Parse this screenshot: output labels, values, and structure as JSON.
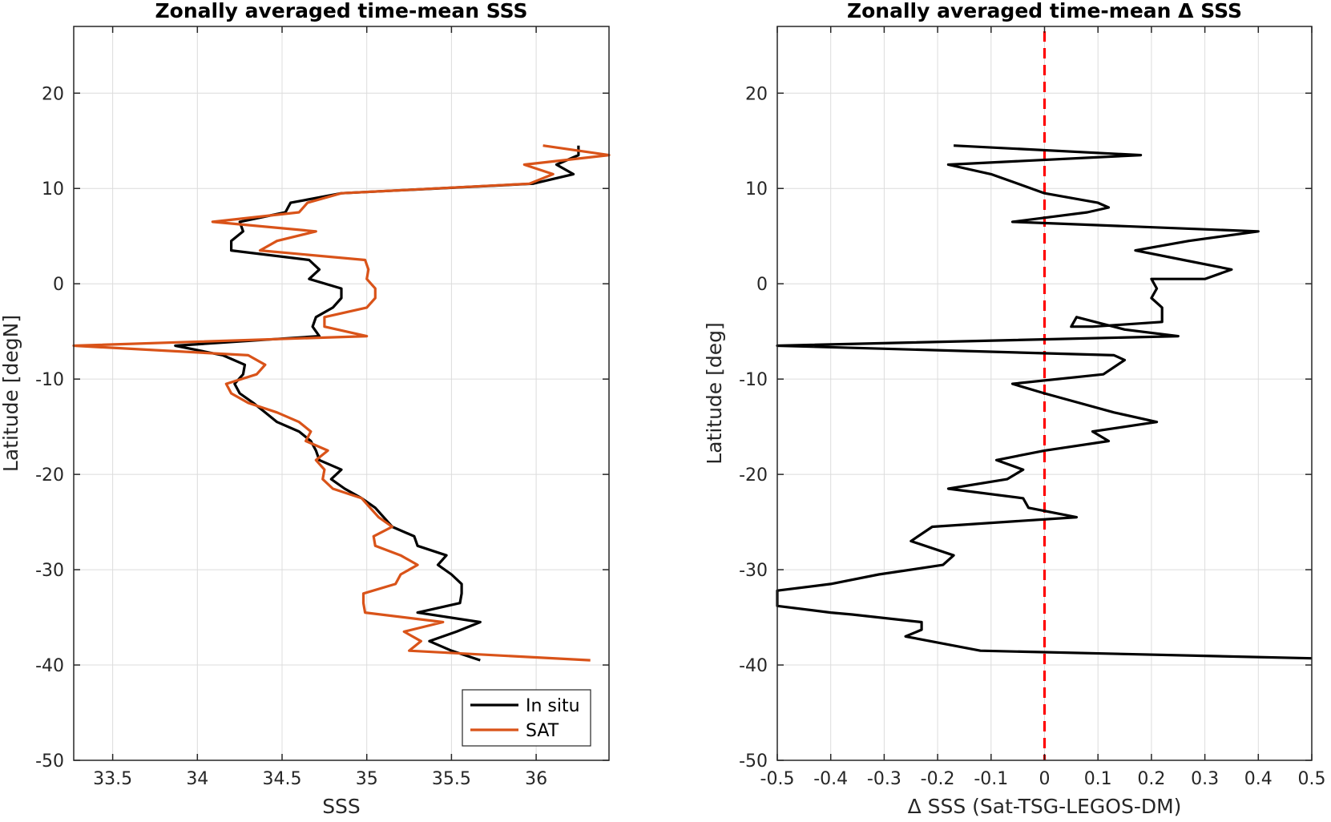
{
  "chart_data": [
    {
      "type": "line",
      "title": "Zonally averaged time-mean SSS",
      "xlabel": "SSS",
      "ylabel": "Latitude [degN]",
      "xlim": [
        33.27,
        36.43
      ],
      "ylim": [
        -50,
        27
      ],
      "xticks": [
        33.5,
        34,
        34.5,
        35,
        35.5,
        36
      ],
      "xtick_labels": [
        "33.5",
        "34",
        "34.5",
        "35",
        "35.5",
        "36"
      ],
      "yticks": [
        -50,
        -40,
        -30,
        -20,
        -10,
        0,
        10,
        20
      ],
      "ytick_labels": [
        "-50",
        "-40",
        "-30",
        "-20",
        "-10",
        "0",
        "10",
        "20"
      ],
      "grid": true,
      "legend": "bottom-right",
      "series": [
        {
          "name": "In situ",
          "color": "#000000",
          "points": [
            [
              36.25,
              14.5
            ],
            [
              36.25,
              13.5
            ],
            [
              36.12,
              12.5
            ],
            [
              36.22,
              11.5
            ],
            [
              35.98,
              10.5
            ],
            [
              34.85,
              9.5
            ],
            [
              34.55,
              8.5
            ],
            [
              34.52,
              7.5
            ],
            [
              34.25,
              6.5
            ],
            [
              34.27,
              5.5
            ],
            [
              34.2,
              4.5
            ],
            [
              34.2,
              3.5
            ],
            [
              34.66,
              2.5
            ],
            [
              34.72,
              1.5
            ],
            [
              34.66,
              0.5
            ],
            [
              34.85,
              -0.5
            ],
            [
              34.85,
              -1.5
            ],
            [
              34.8,
              -2.5
            ],
            [
              34.7,
              -3.5
            ],
            [
              34.68,
              -4.5
            ],
            [
              34.72,
              -5.5
            ],
            [
              33.87,
              -6.5
            ],
            [
              34.15,
              -7.5
            ],
            [
              34.28,
              -8.5
            ],
            [
              34.27,
              -9.5
            ],
            [
              34.22,
              -10.5
            ],
            [
              34.25,
              -11.5
            ],
            [
              34.33,
              -12.5
            ],
            [
              34.4,
              -13.5
            ],
            [
              34.47,
              -14.5
            ],
            [
              34.6,
              -15.5
            ],
            [
              34.67,
              -16.5
            ],
            [
              34.7,
              -17.5
            ],
            [
              34.72,
              -18.5
            ],
            [
              34.85,
              -19.5
            ],
            [
              34.79,
              -20.5
            ],
            [
              34.87,
              -21.5
            ],
            [
              34.97,
              -22.5
            ],
            [
              35.05,
              -23.5
            ],
            [
              35.1,
              -24.5
            ],
            [
              35.15,
              -25.5
            ],
            [
              35.28,
              -26.5
            ],
            [
              35.3,
              -27.5
            ],
            [
              35.47,
              -28.5
            ],
            [
              35.42,
              -29.5
            ],
            [
              35.5,
              -30.5
            ],
            [
              35.56,
              -31.5
            ],
            [
              35.56,
              -32.5
            ],
            [
              35.55,
              -33.5
            ],
            [
              35.3,
              -34.5
            ],
            [
              35.67,
              -35.5
            ],
            [
              35.53,
              -36.5
            ],
            [
              35.37,
              -37.5
            ],
            [
              35.5,
              -38.5
            ],
            [
              35.67,
              -39.5
            ]
          ]
        },
        {
          "name": "SAT",
          "color": "#D95319",
          "points": [
            [
              36.04,
              14.5
            ],
            [
              36.43,
              13.5
            ],
            [
              35.93,
              12.5
            ],
            [
              36.1,
              11.5
            ],
            [
              35.96,
              10.5
            ],
            [
              34.85,
              9.5
            ],
            [
              34.65,
              8.5
            ],
            [
              34.6,
              7.5
            ],
            [
              34.09,
              6.5
            ],
            [
              34.7,
              5.5
            ],
            [
              34.47,
              4.5
            ],
            [
              34.37,
              3.5
            ],
            [
              34.99,
              2.5
            ],
            [
              35.01,
              1.5
            ],
            [
              35.0,
              0.5
            ],
            [
              35.05,
              -0.5
            ],
            [
              35.05,
              -1.5
            ],
            [
              35.0,
              -2.5
            ],
            [
              34.75,
              -3.5
            ],
            [
              34.75,
              -4.5
            ],
            [
              35.0,
              -5.5
            ],
            [
              33.27,
              -6.5
            ],
            [
              34.3,
              -7.5
            ],
            [
              34.4,
              -8.5
            ],
            [
              34.35,
              -9.5
            ],
            [
              34.17,
              -10.5
            ],
            [
              34.2,
              -11.5
            ],
            [
              34.3,
              -12.5
            ],
            [
              34.47,
              -13.5
            ],
            [
              34.6,
              -14.5
            ],
            [
              34.67,
              -15.5
            ],
            [
              34.64,
              -16.5
            ],
            [
              34.77,
              -17.5
            ],
            [
              34.7,
              -18.5
            ],
            [
              34.75,
              -19.5
            ],
            [
              34.74,
              -20.5
            ],
            [
              34.8,
              -21.5
            ],
            [
              34.97,
              -22.5
            ],
            [
              35.02,
              -23.5
            ],
            [
              35.07,
              -24.5
            ],
            [
              35.15,
              -25.5
            ],
            [
              35.04,
              -26.5
            ],
            [
              35.05,
              -27.5
            ],
            [
              35.2,
              -28.5
            ],
            [
              35.3,
              -29.5
            ],
            [
              35.2,
              -30.5
            ],
            [
              35.17,
              -31.5
            ],
            [
              34.98,
              -32.5
            ],
            [
              34.98,
              -33.5
            ],
            [
              34.99,
              -34.5
            ],
            [
              35.45,
              -35.5
            ],
            [
              35.22,
              -36.5
            ],
            [
              35.32,
              -37.5
            ],
            [
              35.25,
              -38.5
            ],
            [
              36.32,
              -39.5
            ]
          ]
        }
      ]
    },
    {
      "type": "line",
      "title": "Zonally averaged time-mean Δ SSS",
      "xlabel": "Δ SSS (Sat-TSG-LEGOS-DM)",
      "ylabel": "Latitude [deg]",
      "xlim": [
        -0.5,
        0.5
      ],
      "ylim": [
        -50,
        27
      ],
      "xticks": [
        -0.5,
        -0.4,
        -0.3,
        -0.2,
        -0.1,
        0,
        0.1,
        0.2,
        0.3,
        0.4,
        0.5
      ],
      "xtick_labels": [
        "-0.5",
        "-0.4",
        "-0.3",
        "-0.2",
        "-0.1",
        "0",
        "0.1",
        "0.2",
        "0.3",
        "0.4",
        "0.5"
      ],
      "yticks": [
        -50,
        -40,
        -30,
        -20,
        -10,
        0,
        10,
        20
      ],
      "ytick_labels": [
        "-50",
        "-40",
        "-30",
        "-20",
        "-10",
        "0",
        "10",
        "20"
      ],
      "grid": true,
      "reference_line": {
        "x": 0,
        "color": "#ff0000",
        "style": "dashed"
      },
      "series": [
        {
          "color": "#000000",
          "points": [
            [
              -0.17,
              14.5
            ],
            [
              0.18,
              13.5
            ],
            [
              -0.18,
              12.5
            ],
            [
              -0.1,
              11.5
            ],
            [
              -0.05,
              10.5
            ],
            [
              0.0,
              9.5
            ],
            [
              0.1,
              8.5
            ],
            [
              0.12,
              8.0
            ],
            [
              0.08,
              7.5
            ],
            [
              0.01,
              7.0
            ],
            [
              -0.06,
              6.5
            ],
            [
              0.4,
              5.5
            ],
            [
              0.27,
              4.5
            ],
            [
              0.17,
              3.5
            ],
            [
              0.26,
              2.5
            ],
            [
              0.35,
              1.5
            ],
            [
              0.3,
              0.5
            ],
            [
              0.2,
              0.5
            ],
            [
              0.21,
              -0.5
            ],
            [
              0.2,
              -1.5
            ],
            [
              0.22,
              -2.5
            ],
            [
              0.22,
              -4.0
            ],
            [
              0.09,
              -4.5
            ],
            [
              0.05,
              -4.5
            ],
            [
              0.06,
              -3.5
            ],
            [
              0.15,
              -4.8
            ],
            [
              0.25,
              -5.5
            ],
            [
              -0.5,
              -6.5
            ],
            [
              0.13,
              -7.5
            ],
            [
              0.15,
              -8.0
            ],
            [
              0.11,
              -9.5
            ],
            [
              -0.06,
              -10.5
            ],
            [
              0.0,
              -11.5
            ],
            [
              0.13,
              -13.5
            ],
            [
              0.21,
              -14.5
            ],
            [
              0.09,
              -15.5
            ],
            [
              0.12,
              -16.5
            ],
            [
              0.0,
              -17.5
            ],
            [
              -0.09,
              -18.5
            ],
            [
              -0.04,
              -19.5
            ],
            [
              -0.07,
              -20.5
            ],
            [
              -0.18,
              -21.5
            ],
            [
              -0.04,
              -22.5
            ],
            [
              -0.03,
              -23.5
            ],
            [
              0.06,
              -24.5
            ],
            [
              -0.21,
              -25.5
            ],
            [
              -0.25,
              -27.0
            ],
            [
              -0.17,
              -28.5
            ],
            [
              -0.19,
              -29.5
            ],
            [
              -0.31,
              -30.5
            ],
            [
              -0.4,
              -31.5
            ],
            [
              -0.5,
              -32.2
            ],
            [
              -0.5,
              -33.8
            ],
            [
              -0.4,
              -34.5
            ],
            [
              -0.36,
              -34.7
            ],
            [
              -0.23,
              -35.5
            ],
            [
              -0.23,
              -36.3
            ],
            [
              -0.26,
              -37.0
            ],
            [
              -0.12,
              -38.5
            ],
            [
              0.5,
              -39.3
            ]
          ]
        }
      ]
    }
  ]
}
